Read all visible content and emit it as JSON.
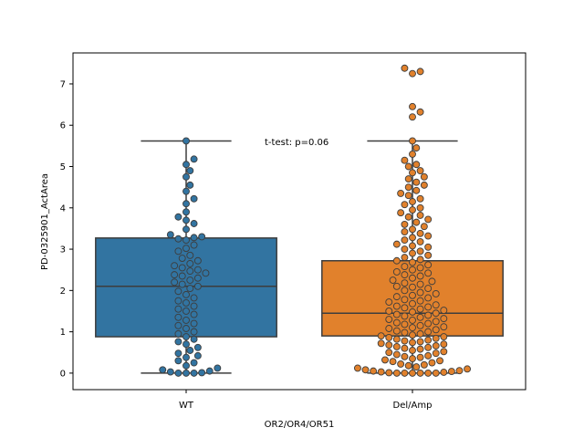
{
  "chart_data": {
    "type": "box",
    "categories": [
      "WT",
      "Del/Amp"
    ],
    "xlabel": "OR2/OR4/OR51",
    "ylabel": "PD-0325901_ActArea",
    "ylim": [
      -0.4,
      7.75
    ],
    "yticks": [
      0,
      1,
      2,
      3,
      4,
      5,
      6,
      7
    ],
    "annotation": "t-test: p=0.06",
    "grid": false,
    "boxes": [
      {
        "category": "WT",
        "color": "#3274a1",
        "q1": 0.88,
        "median": 2.1,
        "q3": 3.27,
        "whisker_low": 0.0,
        "whisker_high": 5.62
      },
      {
        "category": "Del/Amp",
        "color": "#e1812c",
        "q1": 0.9,
        "median": 1.45,
        "q3": 2.72,
        "whisker_low": 0.0,
        "whisker_high": 5.62
      }
    ],
    "swarm": [
      {
        "category": "WT",
        "color": "#3274a1",
        "values": [
          5.62,
          5.18,
          5.05,
          4.9,
          4.75,
          4.55,
          4.4,
          4.22,
          4.1,
          3.9,
          3.78,
          3.7,
          3.62,
          3.48,
          3.35,
          3.3,
          3.28,
          3.25,
          3.22,
          3.1,
          3.02,
          2.95,
          2.85,
          2.78,
          2.72,
          2.65,
          2.6,
          2.55,
          2.5,
          2.47,
          2.42,
          2.38,
          2.35,
          2.3,
          2.25,
          2.2,
          2.15,
          2.1,
          2.05,
          1.98,
          1.9,
          1.82,
          1.75,
          1.7,
          1.62,
          1.55,
          1.5,
          1.42,
          1.35,
          1.28,
          1.2,
          1.15,
          1.08,
          1.0,
          0.95,
          0.88,
          0.82,
          0.76,
          0.7,
          0.62,
          0.55,
          0.48,
          0.42,
          0.38,
          0.3,
          0.25,
          0.18,
          0.12,
          0.08,
          0.05,
          0.03,
          0.01,
          0.0,
          0.0,
          0.0
        ]
      },
      {
        "category": "Del/Amp",
        "color": "#e1812c",
        "values": [
          7.38,
          7.3,
          7.25,
          6.45,
          6.32,
          6.2,
          5.62,
          5.45,
          5.3,
          5.15,
          5.05,
          5.0,
          4.9,
          4.85,
          4.75,
          4.7,
          4.62,
          4.55,
          4.5,
          4.42,
          4.35,
          4.3,
          4.22,
          4.15,
          4.08,
          4.0,
          3.95,
          3.88,
          3.82,
          3.78,
          3.72,
          3.65,
          3.6,
          3.55,
          3.48,
          3.42,
          3.38,
          3.32,
          3.28,
          3.22,
          3.18,
          3.12,
          3.08,
          3.05,
          3.0,
          2.95,
          2.9,
          2.85,
          2.8,
          2.75,
          2.72,
          2.68,
          2.62,
          2.58,
          2.55,
          2.5,
          2.45,
          2.42,
          2.38,
          2.35,
          2.3,
          2.25,
          2.22,
          2.18,
          2.15,
          2.1,
          2.08,
          2.05,
          2.0,
          1.95,
          1.92,
          1.88,
          1.85,
          1.82,
          1.78,
          1.75,
          1.72,
          1.68,
          1.65,
          1.62,
          1.6,
          1.58,
          1.55,
          1.52,
          1.5,
          1.48,
          1.45,
          1.42,
          1.4,
          1.38,
          1.35,
          1.32,
          1.3,
          1.28,
          1.25,
          1.22,
          1.2,
          1.18,
          1.15,
          1.12,
          1.1,
          1.08,
          1.05,
          1.02,
          1.0,
          0.98,
          0.95,
          0.92,
          0.9,
          0.88,
          0.86,
          0.84,
          0.82,
          0.8,
          0.78,
          0.76,
          0.74,
          0.72,
          0.7,
          0.68,
          0.66,
          0.64,
          0.62,
          0.6,
          0.58,
          0.55,
          0.52,
          0.5,
          0.48,
          0.45,
          0.42,
          0.4,
          0.38,
          0.35,
          0.32,
          0.3,
          0.28,
          0.25,
          0.22,
          0.2,
          0.18,
          0.15,
          0.12,
          0.1,
          0.08,
          0.06,
          0.05,
          0.04,
          0.03,
          0.02,
          0.01,
          0.0,
          0.0,
          0.0,
          0.0,
          0.0,
          0.0
        ]
      }
    ]
  }
}
